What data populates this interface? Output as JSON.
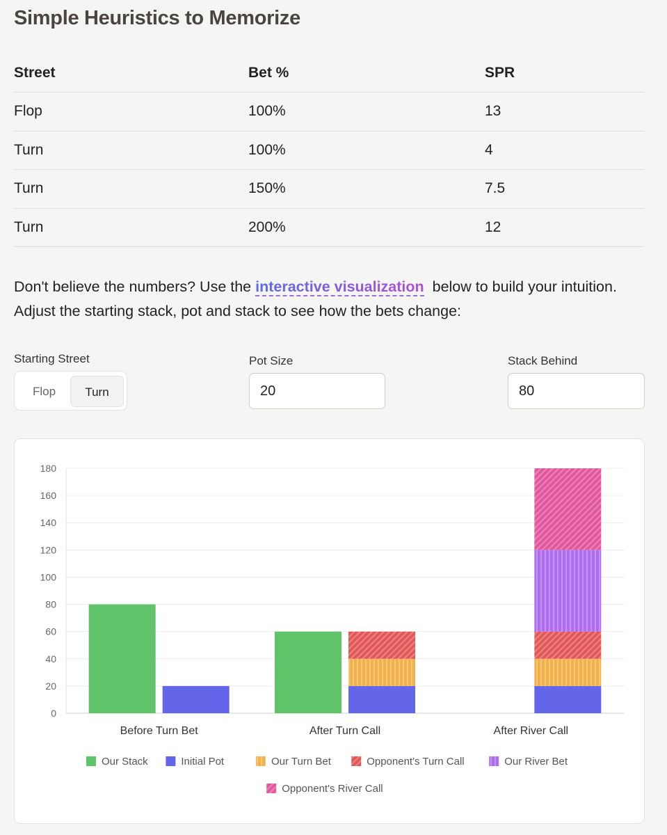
{
  "page": {
    "title": "Simple Heuristics to Memorize"
  },
  "table": {
    "headers": [
      "Street",
      "Bet %",
      "SPR"
    ],
    "rows": [
      [
        "Flop",
        "100%",
        "13"
      ],
      [
        "Turn",
        "100%",
        "4"
      ],
      [
        "Turn",
        "150%",
        "7.5"
      ],
      [
        "Turn",
        "200%",
        "12"
      ]
    ]
  },
  "intro": {
    "before": "Don't believe the numbers? Use the ",
    "link": "interactive visualization",
    "after": "  below to build your intuition. Adjust the starting stack, pot and stack to see how the bets change:"
  },
  "controls": {
    "street_label": "Starting Street",
    "street_options": [
      "Flop",
      "Turn"
    ],
    "street_selected": "Turn",
    "pot_label": "Pot Size",
    "pot_value": "20",
    "stack_label": "Stack Behind",
    "stack_value": "80"
  },
  "chart_data": {
    "type": "bar",
    "categories": [
      "Before Turn Bet",
      "After Turn Call",
      "After River Call"
    ],
    "ylim": [
      0,
      180
    ],
    "yticks": [
      0,
      20,
      40,
      60,
      80,
      100,
      120,
      140,
      160,
      180
    ],
    "grid": true,
    "legend_position": "bottom",
    "stacks": [
      {
        "id": "stack",
        "series": [
          "Our Stack"
        ]
      },
      {
        "id": "pot",
        "series": [
          "Initial Pot",
          "Our Turn Bet",
          "Opponent's Turn Call",
          "Our River Bet",
          "Opponent's River Call"
        ]
      }
    ],
    "series": [
      {
        "name": "Our Stack",
        "stack": "stack",
        "values": [
          80,
          60,
          0
        ],
        "color": "#60c46a",
        "pattern": "none"
      },
      {
        "name": "Initial Pot",
        "stack": "pot",
        "values": [
          20,
          20,
          20
        ],
        "color": "#6366e8",
        "pattern": "none"
      },
      {
        "name": "Our Turn Bet",
        "stack": "pot",
        "values": [
          0,
          20,
          20
        ],
        "color": "#f3b14a",
        "pattern": "vertical"
      },
      {
        "name": "Opponent's Turn Call",
        "stack": "pot",
        "values": [
          0,
          20,
          20
        ],
        "color": "#e45757",
        "pattern": "diagonal"
      },
      {
        "name": "Our River Bet",
        "stack": "pot",
        "values": [
          0,
          0,
          60
        ],
        "color": "#ae6cf2",
        "pattern": "vertical"
      },
      {
        "name": "Opponent's River Call",
        "stack": "pot",
        "values": [
          0,
          0,
          60
        ],
        "color": "#e2579d",
        "pattern": "diagonal"
      }
    ]
  }
}
